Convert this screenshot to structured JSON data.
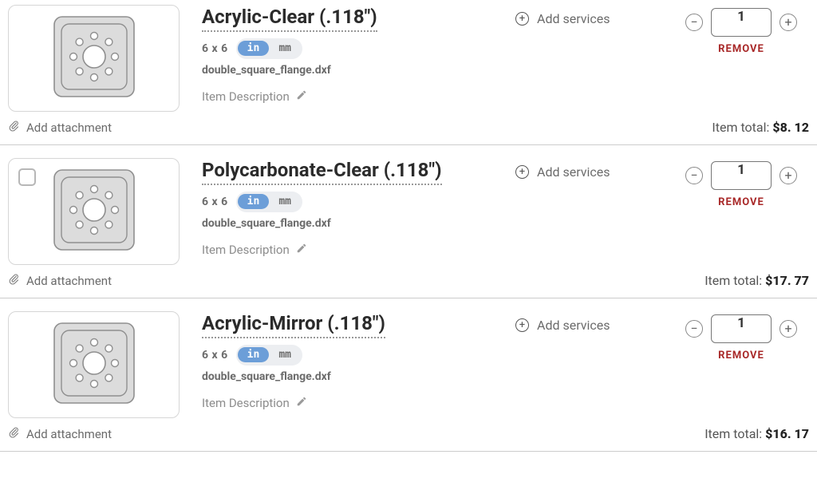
{
  "labels": {
    "add_services": "Add services",
    "remove": "REMOVE",
    "item_description": "Item Description",
    "add_attachment": "Add attachment",
    "item_total_prefix": "Item total:"
  },
  "units": {
    "in": "in",
    "mm": "mm"
  },
  "colors": {
    "unit_active_bg": "#6c9ed8",
    "remove_text": "#a82828",
    "border": "#d6d6d6",
    "muted_text": "#6b6b6b"
  },
  "items": [
    {
      "title": "Acrylic-Clear (.118\")",
      "dimensions": "6  x  6",
      "unit_selected": "in",
      "filename": "double_square_flange.dxf",
      "quantity": "1",
      "total": "$8. 12",
      "has_checkbox": false
    },
    {
      "title": "Polycarbonate-Clear (.118\")",
      "dimensions": "6  x  6",
      "unit_selected": "in",
      "filename": "double_square_flange.dxf",
      "quantity": "1",
      "total": "$17. 77",
      "has_checkbox": true
    },
    {
      "title": "Acrylic-Mirror (.118\")",
      "dimensions": "6  x  6",
      "unit_selected": "in",
      "filename": "double_square_flange.dxf",
      "quantity": "1",
      "total": "$16. 17",
      "has_checkbox": false
    }
  ]
}
